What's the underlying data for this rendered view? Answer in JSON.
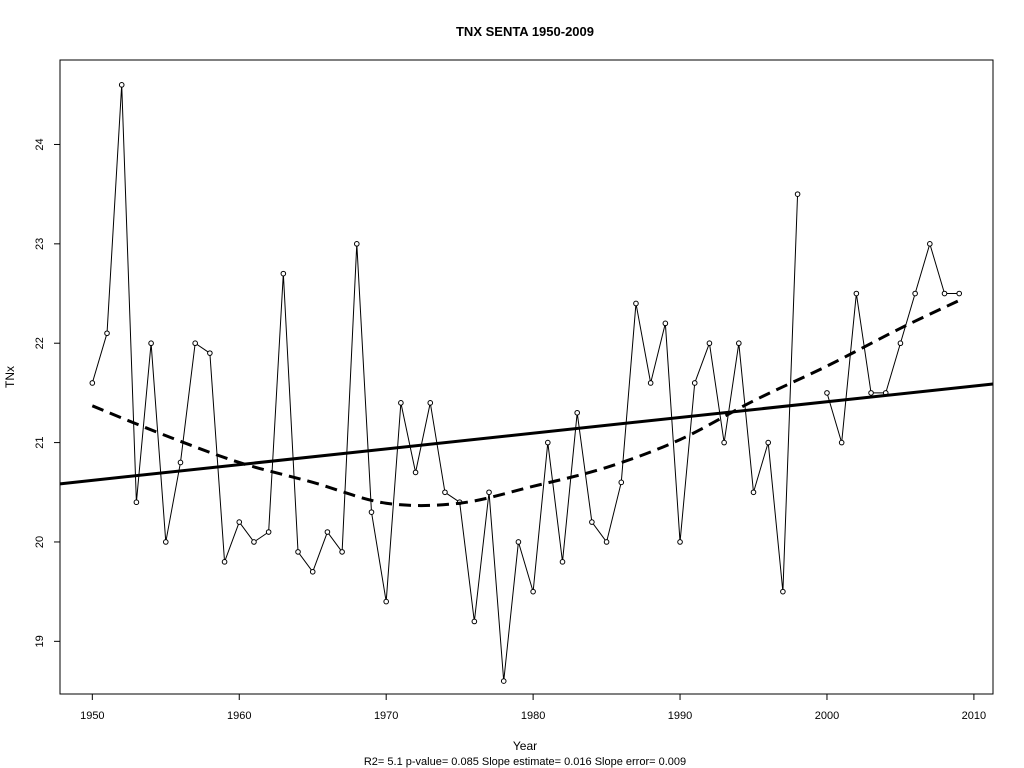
{
  "chart_data": {
    "type": "line",
    "title": "TNX    SENTA 1950-2009",
    "xlabel": "Year",
    "ylabel": "TNx",
    "subtitle": "R2= 5.1  p-value= 0.085  Slope estimate= 0.016  Slope error= 0.009",
    "xlim": [
      1947.8,
      2011.3
    ],
    "ylim": [
      18.47,
      24.85
    ],
    "x_ticks": [
      1950,
      1960,
      1970,
      1980,
      1990,
      2000,
      2010
    ],
    "y_ticks": [
      19,
      20,
      21,
      22,
      23,
      24
    ],
    "grid": false,
    "series": [
      {
        "style": "points-and-lines",
        "x": [
          1950,
          1951,
          1952,
          1953,
          1954,
          1955,
          1956,
          1957,
          1958,
          1959,
          1960,
          1961,
          1962,
          1963,
          1964,
          1965,
          1966,
          1967,
          1968,
          1969,
          1970,
          1971,
          1972,
          1973,
          1974,
          1975,
          1976,
          1977,
          1978,
          1979,
          1980,
          1981,
          1982,
          1983,
          1984,
          1985,
          1986,
          1987,
          1988,
          1989,
          1990,
          1991,
          1992,
          1993,
          1994,
          1995,
          1996,
          1997,
          1998,
          2000,
          2001,
          2002,
          2003,
          2004,
          2005,
          2006,
          2007,
          2008,
          2009
        ],
        "y": [
          21.6,
          22.1,
          24.6,
          20.4,
          22.0,
          20.0,
          20.8,
          22.0,
          21.9,
          19.8,
          20.2,
          20.0,
          20.1,
          22.7,
          19.9,
          19.7,
          20.1,
          19.9,
          23.0,
          20.3,
          19.4,
          21.4,
          20.7,
          21.4,
          20.5,
          20.4,
          19.2,
          20.5,
          18.6,
          20.0,
          19.5,
          21.0,
          19.8,
          21.3,
          20.2,
          20.0,
          20.6,
          22.4,
          21.6,
          22.2,
          20.0,
          21.6,
          22.0,
          21.0,
          22.0,
          20.5,
          21.0,
          19.5,
          23.5,
          21.5,
          21.0,
          22.5,
          21.5,
          21.5,
          22.0,
          22.5,
          23.0,
          22.5,
          22.5
        ],
        "segments": [
          [
            0,
            48
          ],
          [
            49,
            58
          ]
        ]
      },
      {
        "style": "linear-trend",
        "x": [
          1947.8,
          2011.3
        ],
        "y": [
          20.585,
          21.59
        ]
      },
      {
        "style": "smooth-dashed",
        "x": [
          1950,
          1955,
          1960,
          1965,
          1970,
          1975,
          1980,
          1985,
          1990,
          1995,
          2000,
          2005,
          2009
        ],
        "y": [
          21.37,
          21.07,
          20.8,
          20.6,
          20.39,
          20.39,
          20.56,
          20.75,
          21.03,
          21.42,
          21.77,
          22.15,
          22.43
        ]
      }
    ]
  }
}
